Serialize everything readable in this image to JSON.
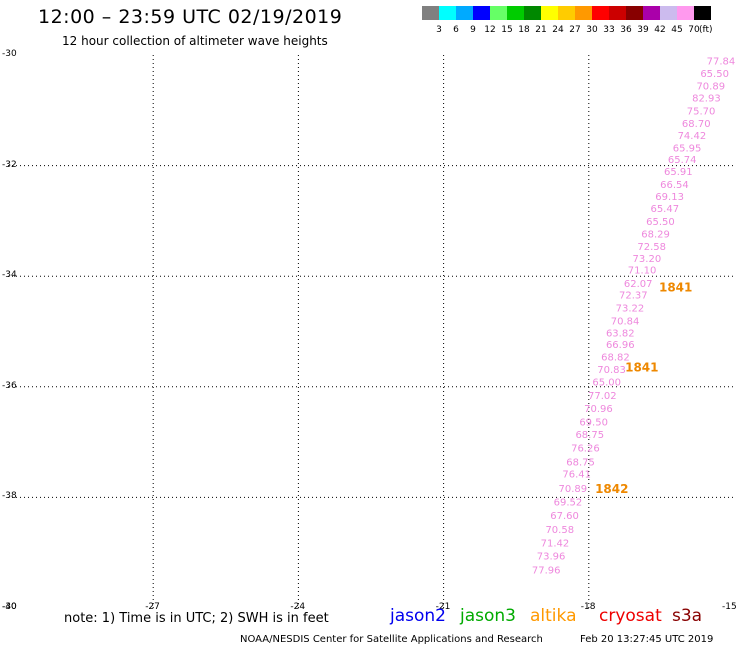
{
  "header": {
    "title": "12:00 – 23:59 UTC 02/19/2019",
    "subtitle": "12 hour collection of altimeter wave heights"
  },
  "colorbar": {
    "colors": [
      "#808080",
      "#00ffff",
      "#00aaff",
      "#0000ff",
      "#66ff66",
      "#00cc00",
      "#008800",
      "#ffff00",
      "#ffcc00",
      "#ff9900",
      "#ff0000",
      "#cc0000",
      "#880000",
      "#aa00aa",
      "#ccbbee",
      "#ff99ee",
      "#000000"
    ],
    "labels": [
      "3",
      "6",
      "9",
      "12",
      "15",
      "18",
      "21",
      "24",
      "27",
      "30",
      "33",
      "36",
      "39",
      "42",
      "45",
      "70"
    ],
    "unit": "(ft)"
  },
  "map": {
    "lat_labels": [
      "-30",
      "-32",
      "-34",
      "-36",
      "-38",
      "-40"
    ],
    "lon_labels": [
      "-30",
      "-27",
      "-24",
      "-21",
      "-18",
      "-15"
    ],
    "observations": {
      "color": "#ee88dd",
      "points": [
        {
          "lon": -15.27,
          "lat": -30.1,
          "value": "77.84"
        },
        {
          "lon": -15.4,
          "lat": -30.33,
          "value": "65.50"
        },
        {
          "lon": -15.48,
          "lat": -30.55,
          "value": "70.89"
        },
        {
          "lon": -15.57,
          "lat": -30.77,
          "value": "82.93"
        },
        {
          "lon": -15.68,
          "lat": -31.0,
          "value": "75.70"
        },
        {
          "lon": -15.78,
          "lat": -31.23,
          "value": "68.70"
        },
        {
          "lon": -15.87,
          "lat": -31.45,
          "value": "74.42"
        },
        {
          "lon": -15.97,
          "lat": -31.67,
          "value": "65.95"
        },
        {
          "lon": -16.07,
          "lat": -31.88,
          "value": "65.74"
        },
        {
          "lon": -16.15,
          "lat": -32.1,
          "value": "65.91"
        },
        {
          "lon": -16.23,
          "lat": -32.33,
          "value": "66.54"
        },
        {
          "lon": -16.33,
          "lat": -32.55,
          "value": "69.13"
        },
        {
          "lon": -16.43,
          "lat": -32.77,
          "value": "65.47"
        },
        {
          "lon": -16.52,
          "lat": -33.0,
          "value": "65.50"
        },
        {
          "lon": -16.62,
          "lat": -33.23,
          "value": "68.29"
        },
        {
          "lon": -16.7,
          "lat": -33.45,
          "value": "72.58"
        },
        {
          "lon": -16.8,
          "lat": -33.67,
          "value": "73.20"
        },
        {
          "lon": -16.9,
          "lat": -33.88,
          "value": "71.10"
        },
        {
          "lon": -16.98,
          "lat": -34.12,
          "value": "62.07"
        },
        {
          "lon": -17.08,
          "lat": -34.33,
          "value": "72.37"
        },
        {
          "lon": -17.15,
          "lat": -34.57,
          "value": "73.22"
        },
        {
          "lon": -17.25,
          "lat": -34.8,
          "value": "70.84"
        },
        {
          "lon": -17.35,
          "lat": -35.02,
          "value": "63.82"
        },
        {
          "lon": -17.35,
          "lat": -35.23,
          "value": "66.96"
        },
        {
          "lon": -17.45,
          "lat": -35.45,
          "value": "68.82"
        },
        {
          "lon": -17.53,
          "lat": -35.68,
          "value": "70.83"
        },
        {
          "lon": -17.63,
          "lat": -35.9,
          "value": "65.00"
        },
        {
          "lon": -17.72,
          "lat": -36.15,
          "value": "77.02"
        },
        {
          "lon": -17.8,
          "lat": -36.38,
          "value": "70.96"
        },
        {
          "lon": -17.9,
          "lat": -36.63,
          "value": "69.50"
        },
        {
          "lon": -17.98,
          "lat": -36.85,
          "value": "68.75"
        },
        {
          "lon": -18.07,
          "lat": -37.1,
          "value": "76.26"
        },
        {
          "lon": -18.17,
          "lat": -37.35,
          "value": "68.75"
        },
        {
          "lon": -18.25,
          "lat": -37.57,
          "value": "76.41"
        },
        {
          "lon": -18.33,
          "lat": -37.83,
          "value": "70.89"
        },
        {
          "lon": -18.43,
          "lat": -38.07,
          "value": "69.52"
        },
        {
          "lon": -18.5,
          "lat": -38.32,
          "value": "67.60"
        },
        {
          "lon": -18.6,
          "lat": -38.57,
          "value": "70.58"
        },
        {
          "lon": -18.7,
          "lat": -38.82,
          "value": "71.42"
        },
        {
          "lon": -18.78,
          "lat": -39.05,
          "value": "73.96"
        },
        {
          "lon": -18.88,
          "lat": -39.3,
          "value": "77.96"
        }
      ]
    },
    "pass_times": {
      "color": "#ee8800",
      "labels": [
        {
          "lon": -16.55,
          "lat": -34.2,
          "text": "1841"
        },
        {
          "lon": -17.25,
          "lat": -35.65,
          "text": "1841"
        },
        {
          "lon": -17.87,
          "lat": -37.85,
          "text": "1842"
        }
      ]
    }
  },
  "footer": {
    "note": "note: 1) Time is in UTC; 2) SWH is in feet",
    "satellites": [
      {
        "name": "jason2",
        "color": "#0000ee"
      },
      {
        "name": "jason3",
        "color": "#00aa00"
      },
      {
        "name": "altika",
        "color": "#ff9900"
      },
      {
        "name": "cryosat",
        "color": "#ee0000"
      },
      {
        "name": "s3a",
        "color": "#880000"
      }
    ],
    "credit": "NOAA/NESDIS Center for Satellite Applications and Research",
    "timestamp": "Feb 20 13:27:45 UTC 2019"
  }
}
